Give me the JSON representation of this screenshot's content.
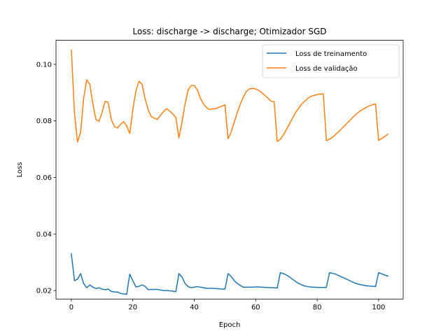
{
  "chart_data": {
    "type": "line",
    "title": "Loss: discharge -> discharge; Otimizador SGD",
    "xlabel": "Epoch",
    "ylabel": "Loss",
    "xlim": [
      -5,
      108
    ],
    "ylim": [
      0.017,
      0.1085
    ],
    "xticks": [
      0,
      20,
      40,
      60,
      80,
      100
    ],
    "yticks": [
      0.02,
      0.04,
      0.06,
      0.08,
      0.1
    ],
    "ytick_labels": [
      "0.02",
      "0.04",
      "0.06",
      "0.08",
      "0.10"
    ],
    "grid": false,
    "legend_position": "top-right",
    "x": [
      0,
      1,
      2,
      3,
      4,
      5,
      6,
      7,
      8,
      9,
      10,
      11,
      12,
      13,
      14,
      15,
      16,
      17,
      18,
      19,
      20,
      21,
      22,
      23,
      24,
      25,
      26,
      27,
      28,
      29,
      30,
      31,
      32,
      33,
      34,
      35,
      36,
      37,
      38,
      39,
      40,
      41,
      42,
      43,
      44,
      45,
      46,
      47,
      48,
      49,
      50,
      51,
      52,
      53,
      54,
      55,
      56,
      57,
      58,
      59,
      60,
      61,
      62,
      63,
      64,
      65,
      66,
      67,
      68,
      69,
      70,
      71,
      72,
      73,
      74,
      75,
      76,
      77,
      78,
      79,
      80,
      81,
      82,
      83,
      84,
      85,
      86,
      87,
      88,
      89,
      90,
      91,
      92,
      93,
      94,
      95,
      96,
      97,
      98,
      99,
      100,
      101,
      102,
      103
    ],
    "series": [
      {
        "name": "Loss de treinamento",
        "color": "#1f77b4",
        "values": [
          0.033,
          0.0235,
          0.024,
          0.026,
          0.0225,
          0.021,
          0.022,
          0.0212,
          0.0207,
          0.021,
          0.0205,
          0.0203,
          0.0205,
          0.0197,
          0.0195,
          0.0195,
          0.019,
          0.0188,
          0.0187,
          0.0258,
          0.0235,
          0.0213,
          0.0215,
          0.022,
          0.0215,
          0.0203,
          0.0204,
          0.0204,
          0.0204,
          0.0202,
          0.02,
          0.02,
          0.0199,
          0.0198,
          0.0196,
          0.026,
          0.0248,
          0.0225,
          0.0214,
          0.021,
          0.0212,
          0.0214,
          0.0212,
          0.021,
          0.0208,
          0.0208,
          0.0208,
          0.0207,
          0.0206,
          0.0205,
          0.0205,
          0.026,
          0.025,
          0.0235,
          0.0225,
          0.0218,
          0.0212,
          0.0212,
          0.0212,
          0.0212,
          0.0213,
          0.0213,
          0.0212,
          0.0211,
          0.0211,
          0.021,
          0.021,
          0.0209,
          0.0263,
          0.026,
          0.0255,
          0.0248,
          0.024,
          0.0232,
          0.0225,
          0.022,
          0.0216,
          0.0214,
          0.0212,
          0.0212,
          0.0211,
          0.0211,
          0.0211,
          0.0211,
          0.0263,
          0.0261,
          0.0258,
          0.0253,
          0.0248,
          0.0243,
          0.0238,
          0.0233,
          0.0228,
          0.0224,
          0.0221,
          0.0219,
          0.0217,
          0.0216,
          0.0215,
          0.0214,
          0.0263,
          0.0259,
          0.0255,
          0.0251
        ]
      },
      {
        "name": "Loss de validação",
        "color": "#ff7f0e",
        "values": [
          0.105,
          0.083,
          0.0725,
          0.076,
          0.088,
          0.0945,
          0.093,
          0.086,
          0.0805,
          0.0798,
          0.083,
          0.087,
          0.0865,
          0.0805,
          0.078,
          0.0775,
          0.0788,
          0.0797,
          0.0783,
          0.0755,
          0.084,
          0.0905,
          0.094,
          0.093,
          0.0878,
          0.084,
          0.0815,
          0.081,
          0.0805,
          0.082,
          0.0833,
          0.0843,
          0.0835,
          0.0825,
          0.0812,
          0.074,
          0.0795,
          0.086,
          0.091,
          0.0925,
          0.0925,
          0.091,
          0.088,
          0.086,
          0.0847,
          0.084,
          0.0843,
          0.0843,
          0.0848,
          0.0852,
          0.0857,
          0.0737,
          0.076,
          0.0795,
          0.083,
          0.086,
          0.0885,
          0.0905,
          0.0913,
          0.0915,
          0.0913,
          0.0908,
          0.09,
          0.089,
          0.088,
          0.087,
          0.0868,
          0.0727,
          0.0735,
          0.075,
          0.077,
          0.079,
          0.081,
          0.083,
          0.0845,
          0.086,
          0.087,
          0.088,
          0.0887,
          0.089,
          0.0893,
          0.0895,
          0.0895,
          0.073,
          0.0735,
          0.0742,
          0.0752,
          0.0762,
          0.0773,
          0.0784,
          0.0795,
          0.0806,
          0.0817,
          0.0827,
          0.0835,
          0.0842,
          0.0848,
          0.0853,
          0.0857,
          0.086,
          0.0731,
          0.0738,
          0.0745,
          0.0753
        ]
      }
    ]
  }
}
